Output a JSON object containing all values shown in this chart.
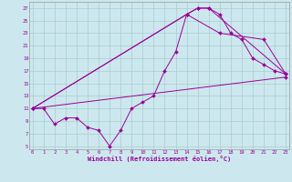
{
  "xlabel": "Windchill (Refroidissement éolien,°C)",
  "bg_color": "#cce8ee",
  "line_color": "#990099",
  "grid_color": "#aacccc",
  "line1_x": [
    0,
    1,
    2,
    3,
    4,
    5,
    6,
    7,
    8,
    9,
    10,
    11,
    12,
    13,
    14,
    15,
    16,
    17,
    18,
    19,
    20,
    21,
    22,
    23
  ],
  "line1_y": [
    11,
    11,
    8.5,
    9.5,
    9.5,
    8,
    7.5,
    5,
    7.5,
    11,
    12,
    13,
    17,
    20,
    26,
    27,
    27,
    26,
    23,
    22,
    19,
    18,
    17,
    16.5
  ],
  "line2_x": [
    0,
    14,
    15,
    16,
    23
  ],
  "line2_y": [
    11,
    26,
    27,
    27,
    16.5
  ],
  "line3_x": [
    0,
    14,
    17,
    21,
    23
  ],
  "line3_y": [
    11,
    26,
    23,
    22,
    16.5
  ],
  "line4_x": [
    0,
    23
  ],
  "line4_y": [
    11,
    16
  ],
  "xlim": [
    -0.3,
    23.3
  ],
  "ylim": [
    4.5,
    28
  ],
  "yticks": [
    5,
    7,
    9,
    11,
    13,
    15,
    17,
    19,
    21,
    23,
    25,
    27
  ],
  "xticks": [
    0,
    1,
    2,
    3,
    4,
    5,
    6,
    7,
    8,
    9,
    10,
    11,
    12,
    13,
    14,
    15,
    16,
    17,
    18,
    19,
    20,
    21,
    22,
    23
  ]
}
